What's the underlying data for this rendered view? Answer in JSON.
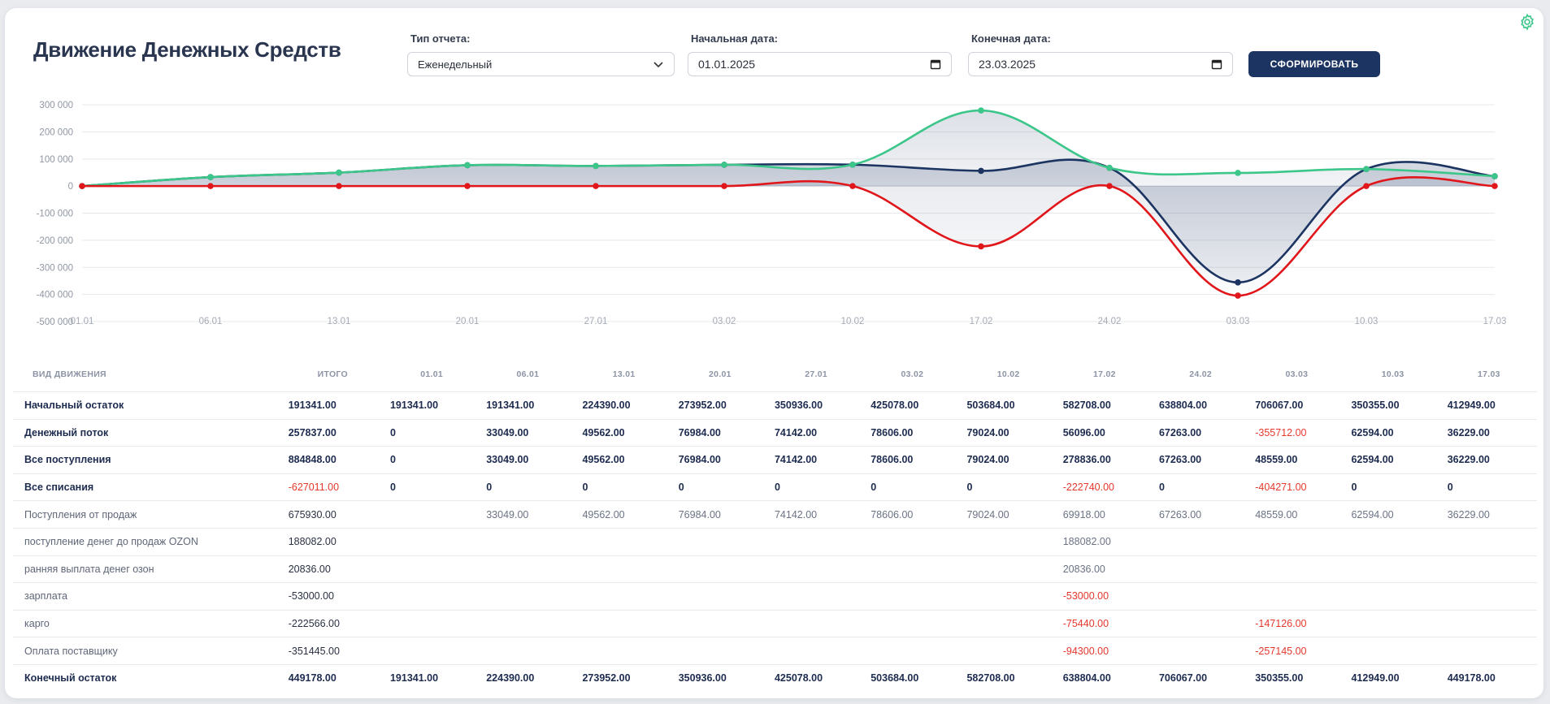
{
  "header": {
    "title": "Движение Денежных Средств",
    "report_type_label": "Тип отчета:",
    "report_type_value": "Еженедельный",
    "start_date_label": "Начальная дата:",
    "start_date_value": "01.01.2025",
    "end_date_label": "Конечная дата:",
    "end_date_value": "23.03.2025",
    "generate_label": "СФОРМИРОВАТЬ"
  },
  "colors": {
    "navy": "#1c3461",
    "green": "#3cc68a",
    "red": "#e0161b",
    "negative": "#e5382c"
  },
  "icons": {
    "settings": "gear-icon",
    "dropdown": "chevron-down-icon",
    "calendar": "calendar-icon"
  },
  "chart_data": {
    "type": "line",
    "x": [
      "01.01",
      "06.01",
      "13.01",
      "20.01",
      "27.01",
      "03.02",
      "10.02",
      "17.02",
      "24.02",
      "03.03",
      "10.03",
      "17.03"
    ],
    "yticks": [
      "300 000",
      "200 000",
      "100 000",
      "0",
      "-100 000",
      "-200 000",
      "-300 000",
      "-400 000",
      "-500 000"
    ],
    "ylim": [
      -500000,
      300000
    ],
    "grid": true,
    "series": [
      {
        "color": "#1c3461",
        "values": [
          0,
          33049,
          49562,
          76984,
          74142,
          78606,
          79024,
          56096,
          67263,
          -355712,
          62594,
          36229
        ]
      },
      {
        "color": "#3cc68a",
        "values": [
          0,
          33049,
          49562,
          76984,
          74142,
          78606,
          79024,
          278836,
          67263,
          48559,
          62594,
          36229
        ]
      },
      {
        "color": "#e0161b",
        "values": [
          0,
          0,
          0,
          0,
          0,
          0,
          0,
          -222740,
          0,
          -404271,
          0,
          0
        ]
      }
    ]
  },
  "table": {
    "headers": [
      "ВИД ДВИЖЕНИЯ",
      "ИТОГО",
      "01.01",
      "06.01",
      "13.01",
      "20.01",
      "27.01",
      "03.02",
      "10.02",
      "17.02",
      "24.02",
      "03.03",
      "10.03",
      "17.03"
    ],
    "rows": [
      {
        "bold": true,
        "cells": [
          "Начальный остаток",
          "191341.00",
          "191341.00",
          "191341.00",
          "224390.00",
          "273952.00",
          "350936.00",
          "425078.00",
          "503684.00",
          "582708.00",
          "638804.00",
          "706067.00",
          "350355.00",
          "412949.00"
        ]
      },
      {
        "bold": true,
        "cells": [
          "Денежный поток",
          "257837.00",
          "0",
          "33049.00",
          "49562.00",
          "76984.00",
          "74142.00",
          "78606.00",
          "79024.00",
          "56096.00",
          "67263.00",
          "-355712.00",
          "62594.00",
          "36229.00"
        ]
      },
      {
        "bold": true,
        "cells": [
          "Все поступления",
          "884848.00",
          "0",
          "33049.00",
          "49562.00",
          "76984.00",
          "74142.00",
          "78606.00",
          "79024.00",
          "278836.00",
          "67263.00",
          "48559.00",
          "62594.00",
          "36229.00"
        ]
      },
      {
        "bold": true,
        "cells": [
          "Все списания",
          "-627011.00",
          "0",
          "0",
          "0",
          "0",
          "0",
          "0",
          "0",
          "-222740.00",
          "0",
          "-404271.00",
          "0",
          "0"
        ]
      },
      {
        "bold": false,
        "cells": [
          "Поступления от продаж",
          "675930.00",
          "",
          "33049.00",
          "49562.00",
          "76984.00",
          "74142.00",
          "78606.00",
          "79024.00",
          "69918.00",
          "67263.00",
          "48559.00",
          "62594.00",
          "36229.00"
        ]
      },
      {
        "bold": false,
        "cells": [
          "поступление денег до продаж OZON",
          "188082.00",
          "",
          "",
          "",
          "",
          "",
          "",
          "",
          "188082.00",
          "",
          "",
          "",
          ""
        ]
      },
      {
        "bold": false,
        "cells": [
          "ранняя выплата денег озон",
          "20836.00",
          "",
          "",
          "",
          "",
          "",
          "",
          "",
          "20836.00",
          "",
          "",
          "",
          ""
        ]
      },
      {
        "bold": false,
        "cells": [
          "зарплата",
          "-53000.00",
          "",
          "",
          "",
          "",
          "",
          "",
          "",
          "-53000.00",
          "",
          "",
          "",
          ""
        ]
      },
      {
        "bold": false,
        "cells": [
          "карго",
          "-222566.00",
          "",
          "",
          "",
          "",
          "",
          "",
          "",
          "-75440.00",
          "",
          "-147126.00",
          "",
          ""
        ]
      },
      {
        "bold": false,
        "cells": [
          "Оплата поставщику",
          "-351445.00",
          "",
          "",
          "",
          "",
          "",
          "",
          "",
          "-94300.00",
          "",
          "-257145.00",
          "",
          ""
        ]
      },
      {
        "bold": true,
        "cells": [
          "Конечный остаток",
          "449178.00",
          "191341.00",
          "224390.00",
          "273952.00",
          "350936.00",
          "425078.00",
          "503684.00",
          "582708.00",
          "638804.00",
          "706067.00",
          "350355.00",
          "412949.00",
          "449178.00"
        ]
      }
    ]
  }
}
